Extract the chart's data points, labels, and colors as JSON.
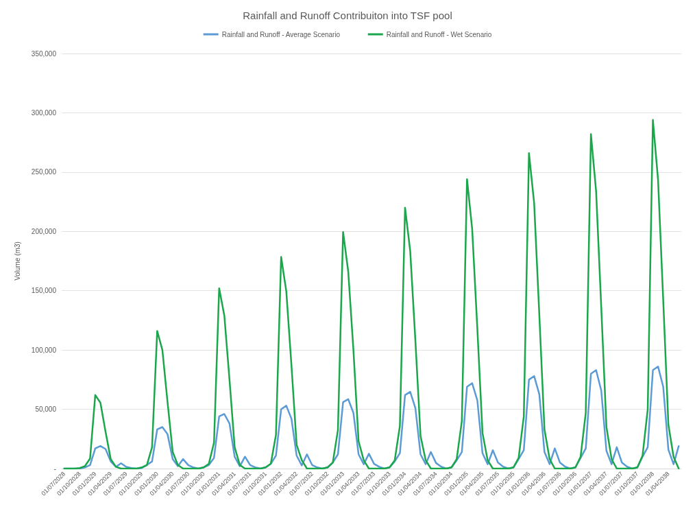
{
  "chart_data": {
    "type": "line",
    "title": "Rainfall and Runoff Contribuiton into TSF pool",
    "ylabel": "Volume (m3)",
    "categories": [
      "01/07/2028",
      null,
      null,
      "01/10/2028",
      null,
      null,
      "01/01/2029",
      null,
      null,
      "01/04/2029",
      null,
      null,
      "01/07/2029",
      null,
      null,
      "01/10/2029",
      null,
      null,
      "01/01/2030",
      null,
      null,
      "01/04/2030",
      null,
      null,
      "01/07/2030",
      null,
      null,
      "01/10/2030",
      null,
      null,
      "01/01/2031",
      null,
      null,
      "01/04/2031",
      null,
      null,
      "01/07/2031",
      null,
      null,
      "01/10/2031",
      null,
      null,
      "01/01/2032",
      null,
      null,
      "01/04/2032",
      null,
      null,
      "01/07/2032",
      null,
      null,
      "01/10/2032",
      null,
      null,
      "01/01/2033",
      null,
      null,
      "01/04/2033",
      null,
      null,
      "01/07/2033",
      null,
      null,
      "01/10/2033",
      null,
      null,
      "01/01/2034",
      null,
      null,
      "01/04/2034",
      null,
      null,
      "01/07/2034",
      null,
      null,
      "01/10/2034",
      null,
      null,
      "01/01/2035",
      null,
      null,
      "01/04/2035",
      null,
      null,
      "01/07/2035",
      null,
      null,
      "01/10/2035",
      null,
      null,
      "01/01/2036",
      null,
      null,
      "01/04/2036",
      null,
      null,
      "01/07/2036",
      null,
      null,
      "01/10/2036",
      null,
      null,
      "01/01/2037",
      null,
      null,
      "01/04/2037",
      null,
      null,
      "01/07/2037",
      null,
      null,
      "01/10/2037",
      null,
      null,
      "01/01/2038",
      null,
      null,
      "01/04/2038",
      null,
      null
    ],
    "series": [
      {
        "name": "Rainfall and Runoff - Average Scenario",
        "color": "#5b9bd5",
        "values": [
          0,
          0,
          0,
          0,
          1000,
          3000,
          17000,
          19000,
          16500,
          6000,
          1500,
          4500,
          1500,
          500,
          0,
          500,
          3000,
          6000,
          33000,
          35000,
          29000,
          8000,
          2000,
          8000,
          3000,
          1000,
          0,
          1000,
          3000,
          9000,
          44000,
          46000,
          38000,
          10000,
          2000,
          10000,
          3000,
          1000,
          0,
          1000,
          4000,
          11000,
          50000,
          53000,
          42000,
          11000,
          2700,
          12000,
          3000,
          1000,
          0,
          1000,
          5000,
          12000,
          56000,
          58500,
          47000,
          12000,
          3700,
          12500,
          4000,
          1500,
          0,
          1000,
          6000,
          13000,
          62000,
          64700,
          51000,
          12000,
          3700,
          14000,
          4700,
          1600,
          0,
          1000,
          7000,
          14000,
          69000,
          72000,
          57500,
          13000,
          3700,
          15500,
          5000,
          1600,
          0,
          1000,
          8000,
          15500,
          75000,
          78000,
          62700,
          14000,
          3700,
          17000,
          5000,
          1600,
          0,
          1000,
          9000,
          17000,
          80000,
          83000,
          65800,
          15000,
          3700,
          18000,
          5000,
          1600,
          0,
          1000,
          10000,
          18000,
          83000,
          86000,
          69000,
          16000,
          3700,
          19000
        ]
      },
      {
        "name": "Rainfall and Runoff - Wet Scenario",
        "color": "#1aa64a",
        "values": [
          0,
          0,
          0,
          500,
          2000,
          8500,
          62000,
          55500,
          31000,
          8000,
          1500,
          0,
          0,
          0,
          0,
          1000,
          3000,
          18000,
          116000,
          100000,
          56000,
          14000,
          3000,
          0,
          0,
          0,
          0,
          1000,
          4000,
          22000,
          152000,
          129000,
          75000,
          18000,
          3000,
          0,
          0,
          0,
          0,
          1000,
          4000,
          28500,
          178500,
          149500,
          87000,
          20000,
          7000,
          0,
          0,
          0,
          0,
          1000,
          5000,
          32500,
          199500,
          166000,
          100000,
          23000,
          7000,
          0,
          0,
          0,
          0,
          1000,
          7000,
          36000,
          220000,
          183500,
          108000,
          27500,
          7000,
          0,
          0,
          0,
          0,
          1000,
          8000,
          40000,
          244000,
          202000,
          118000,
          30000,
          7000,
          0,
          0,
          0,
          0,
          1000,
          9000,
          44000,
          266000,
          224000,
          130000,
          33000,
          8000,
          0,
          0,
          0,
          0,
          1000,
          10000,
          47000,
          282000,
          234000,
          136000,
          35000,
          8000,
          0,
          0,
          0,
          0,
          1000,
          11000,
          50000,
          294000,
          243500,
          142000,
          37000,
          10000,
          0
        ]
      }
    ],
    "ylim": [
      0,
      350000
    ],
    "yticks": [
      {
        "value": 0,
        "label": "-"
      },
      {
        "value": 50000,
        "label": "50,000"
      },
      {
        "value": 100000,
        "label": "100,000"
      },
      {
        "value": 150000,
        "label": "150,000"
      },
      {
        "value": 200000,
        "label": "200,000"
      },
      {
        "value": 250000,
        "label": "250,000"
      },
      {
        "value": 300000,
        "label": "300,000"
      },
      {
        "value": 350000,
        "label": "350,000"
      }
    ],
    "grid": "y",
    "legend": "top",
    "marker": "none",
    "line_style": "solid"
  }
}
